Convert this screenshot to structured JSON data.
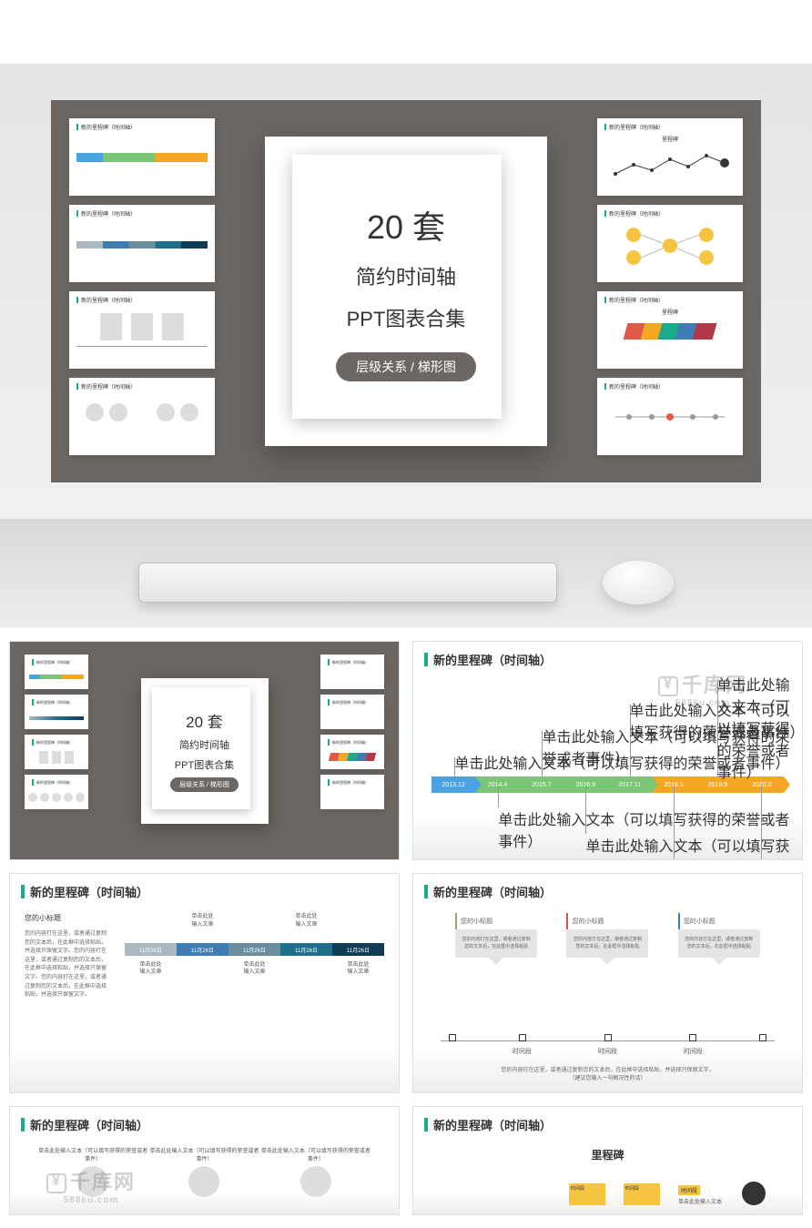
{
  "page_background": "#ffffff",
  "hero": {
    "bg": "#6c6763",
    "main": {
      "num": "20 套",
      "line1": "简约时间轴",
      "line2": "PPT图表合集",
      "tag": "层级关系 / 梯形图"
    },
    "thumb_title": "新的里程碑（时间轴）"
  },
  "watermark": {
    "brand": "千库网",
    "domain": "588ku.com"
  },
  "slide_title": "新的里程碑（时间轴）",
  "slide2": {
    "stages": [
      {
        "label": "2013.12",
        "color": "#4aa3df"
      },
      {
        "label": "2014.4",
        "color": "#7cc576"
      },
      {
        "label": "2015.7",
        "color": "#7cc576"
      },
      {
        "label": "2016.9",
        "color": "#7cc576"
      },
      {
        "label": "2017.11",
        "color": "#7cc576"
      },
      {
        "label": "2018.1",
        "color": "#f5a623"
      },
      {
        "label": "2019.9",
        "color": "#f5a623"
      },
      {
        "label": "2020.2",
        "color": "#f5a623"
      }
    ],
    "note_text": "单击此处输入文本（可以填写获得的荣誉或者事件）"
  },
  "slide3": {
    "subtitle": "您的小标题",
    "para": "您的内容打在这里，或者通过复制您的文本后，在此框中选择粘贴，并选择只保留文字。您的内容打在这里，或者通过复制您的文本后，在此框中选择粘贴，并选择只保留文字。您的内容打在这里，或者通过复制您的文本后，在此框中选择粘贴，并选择只保留文字。",
    "cells": [
      {
        "date": "11月26日",
        "color": "#aab8c2"
      },
      {
        "date": "11月26日",
        "color": "#3e7cb1"
      },
      {
        "date": "11月26日",
        "color": "#6b8e9e"
      },
      {
        "date": "11月26日",
        "color": "#1f6e8c"
      },
      {
        "date": "11月26日",
        "color": "#0f3b57"
      }
    ],
    "label_top": "单击此处",
    "label_bot": "输入文章"
  },
  "slide4": {
    "columns": [
      {
        "sub": "您的小标题",
        "accent": "#8fa96b"
      },
      {
        "sub": "您的小标题",
        "accent": "#d05757"
      },
      {
        "sub": "您的小标题",
        "accent": "#3e7cb1"
      }
    ],
    "card_text": "您的内容打在这里，或者通过复制您的文本后，在此框中选择粘贴",
    "axis_label": "时间段",
    "footer1": "您的内容打在这里，或者通过复制您的文本后，在此框中选择粘贴，并选择只保留文字。",
    "footer2": "（建议您输入一句概况性的话）"
  },
  "slide5": {
    "note": "单击此处输入文本（可以填写获得的荣誉或者事件）"
  },
  "slide6": {
    "title2": "里程碑",
    "box_label": "时间段",
    "box_text": "单击此处输入文本"
  }
}
